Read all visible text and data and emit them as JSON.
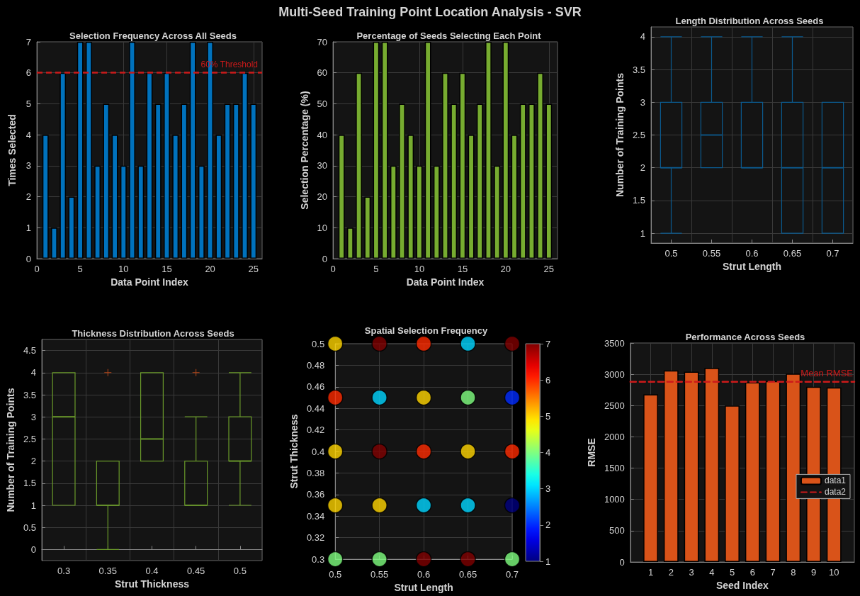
{
  "chart_data": [
    {
      "type": "other",
      "title": "Multi-Seed Training Point Location Analysis - SVR"
    },
    {
      "type": "bar",
      "title": "Selection Frequency Across All Seeds",
      "xlabel": "Data Point Index",
      "ylabel": "Times Selected",
      "x": [
        1,
        2,
        3,
        4,
        5,
        6,
        7,
        8,
        9,
        10,
        11,
        12,
        13,
        14,
        15,
        16,
        17,
        18,
        19,
        20,
        21,
        22,
        23,
        24,
        25
      ],
      "values": [
        4,
        1,
        6,
        2,
        7,
        7,
        3,
        5,
        4,
        3,
        7,
        3,
        6,
        5,
        6,
        4,
        5,
        7,
        3,
        7,
        4,
        5,
        5,
        6,
        5
      ],
      "color": "#0072bd",
      "xlim": [
        0,
        26
      ],
      "xticks": [
        0,
        5,
        10,
        15,
        20,
        25
      ],
      "ylim": [
        0,
        7
      ],
      "yticks": [
        0,
        1,
        2,
        3,
        4,
        5,
        6,
        7
      ],
      "grid": true,
      "ref_lines": [
        {
          "axis": "y",
          "value": 6,
          "label": "60% Threshold",
          "color": "#cc1a1a",
          "line_style": "dashed"
        }
      ]
    },
    {
      "type": "bar",
      "title": "Percentage of Seeds Selecting Each Point",
      "xlabel": "Data Point Index",
      "ylabel": "Selection Percentage (%)",
      "x": [
        1,
        2,
        3,
        4,
        5,
        6,
        7,
        8,
        9,
        10,
        11,
        12,
        13,
        14,
        15,
        16,
        17,
        18,
        19,
        20,
        21,
        22,
        23,
        24,
        25
      ],
      "values": [
        40,
        10,
        60,
        20,
        70,
        70,
        30,
        50,
        40,
        30,
        70,
        30,
        60,
        50,
        60,
        40,
        50,
        70,
        30,
        70,
        40,
        50,
        50,
        60,
        50
      ],
      "color": "#77ac30",
      "xlim": [
        0,
        26
      ],
      "xticks": [
        0,
        5,
        10,
        15,
        20,
        25
      ],
      "ylim": [
        0,
        70
      ],
      "yticks": [
        0,
        10,
        20,
        30,
        40,
        50,
        60,
        70
      ],
      "grid": true
    },
    {
      "type": "box",
      "title": "Length Distribution Across Seeds",
      "xlabel": "Strut Length",
      "ylabel": "Number of Training Points",
      "categories": [
        "0.5",
        "0.55",
        "0.6",
        "0.65",
        "0.7"
      ],
      "ylim": [
        0.85,
        4.15
      ],
      "yticks": [
        1,
        1.5,
        2,
        2.5,
        3,
        3.5,
        4
      ],
      "grid": true,
      "series": [
        {
          "color": "#0b5a8f",
          "boxes": [
            {
              "low": 1,
              "q1": 2,
              "median": 2,
              "q3": 3,
              "high": 4
            },
            {
              "low": 2,
              "q1": 2,
              "median": 2.5,
              "q3": 3,
              "high": 4
            },
            {
              "low": 2,
              "q1": 2,
              "median": 2,
              "q3": 3,
              "high": 4
            },
            {
              "low": 1,
              "q1": 1,
              "median": 2,
              "q3": 3,
              "high": 4
            },
            {
              "low": 1,
              "q1": 1,
              "median": 2,
              "q3": 3,
              "high": 3
            }
          ]
        }
      ]
    },
    {
      "type": "box",
      "title": "Thickness Distribution Across Seeds",
      "xlabel": "Strut Thickness",
      "ylabel": "Number of Training Points",
      "categories": [
        "0.3",
        "0.35",
        "0.4",
        "0.45",
        "0.5"
      ],
      "ylim": [
        -0.25,
        4.75
      ],
      "yticks": [
        0,
        0.5,
        1,
        1.5,
        2,
        2.5,
        3,
        3.5,
        4,
        4.5
      ],
      "grid": true,
      "series": [
        {
          "color": "#6a9a2a",
          "boxes": [
            {
              "low": 1,
              "q1": 1,
              "median": 3,
              "q3": 4,
              "high": 4
            },
            {
              "low": 0,
              "q1": 1,
              "median": 1,
              "q3": 2,
              "high": 2
            },
            {
              "low": 2,
              "q1": 2,
              "median": 2.5,
              "q3": 4,
              "high": 4
            },
            {
              "low": 1,
              "q1": 1,
              "median": 1,
              "q3": 2,
              "high": 3
            },
            {
              "low": 1,
              "q1": 2,
              "median": 2,
              "q3": 3,
              "high": 4
            }
          ]
        },
        {
          "type": "scatter",
          "color": "#d95319",
          "marker": "cross",
          "x": [
            "0.35",
            "0.45"
          ],
          "values": [
            4,
            4
          ]
        }
      ]
    },
    {
      "type": "scatter",
      "title": "Spatial Selection Frequency",
      "xlabel": "Strut Length",
      "ylabel": "Strut Thickness",
      "marker": "circle",
      "x": [
        0.5,
        0.55,
        0.6,
        0.65,
        0.7,
        0.5,
        0.55,
        0.6,
        0.65,
        0.7,
        0.5,
        0.55,
        0.6,
        0.65,
        0.7,
        0.5,
        0.55,
        0.6,
        0.65,
        0.7,
        0.5,
        0.55,
        0.6,
        0.65,
        0.7
      ],
      "values": [
        0.5,
        0.5,
        0.5,
        0.5,
        0.5,
        0.45,
        0.45,
        0.45,
        0.45,
        0.45,
        0.4,
        0.4,
        0.4,
        0.4,
        0.4,
        0.35,
        0.35,
        0.35,
        0.35,
        0.35,
        0.3,
        0.3,
        0.3,
        0.3,
        0.3
      ],
      "cvalues": [
        5,
        7,
        6,
        3,
        7,
        6,
        3,
        5,
        4,
        2,
        5,
        7,
        6,
        5,
        6,
        5,
        5,
        3,
        3,
        1,
        4,
        4,
        7,
        7,
        4
      ],
      "xlim": [
        0.5,
        0.7
      ],
      "xticks": [
        0.5,
        0.55,
        0.6,
        0.65,
        0.7
      ],
      "ylim": [
        0.3,
        0.5
      ],
      "yticks": [
        0.3,
        0.32,
        0.34,
        0.36,
        0.38,
        0.4,
        0.42,
        0.44,
        0.46,
        0.48,
        0.5
      ],
      "clim": [
        1,
        7
      ],
      "cticks": [
        1,
        2,
        3,
        4,
        5,
        6,
        7
      ],
      "grid": true
    },
    {
      "type": "bar",
      "title": "Performance Across Seeds",
      "xlabel": "Seed Index",
      "ylabel": "RMSE",
      "x": [
        1,
        2,
        3,
        4,
        5,
        6,
        7,
        8,
        9,
        10
      ],
      "xlim": [
        0,
        11
      ],
      "xticks": [
        1,
        2,
        3,
        4,
        5,
        6,
        7,
        8,
        9,
        10
      ],
      "ylim": [
        0,
        3500
      ],
      "yticks": [
        0,
        500,
        1000,
        1500,
        2000,
        2500,
        3000,
        3500
      ],
      "grid": true,
      "legend": "right",
      "annotations": [
        {
          "text": "Mean RMSE",
          "x": 11,
          "y": 2880
        }
      ],
      "series": [
        {
          "name": "data1",
          "color": "#d95319",
          "values": [
            2680,
            3060,
            3040,
            3100,
            2500,
            2870,
            2890,
            3010,
            2800,
            2790
          ]
        },
        {
          "name": "data2",
          "type": "line",
          "color": "#cc1a1a",
          "line_style": "dashed",
          "marker": "none",
          "x": [
            0,
            11
          ],
          "values": [
            2880,
            2880
          ]
        }
      ]
    }
  ]
}
